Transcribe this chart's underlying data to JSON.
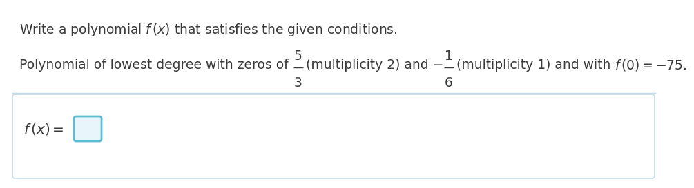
{
  "bg_color": "#ffffff",
  "text_color": "#3a3a3a",
  "box_color": "#5bbcd6",
  "box_fill": "#e8f6fb",
  "sep_color": "#c0dde8",
  "font_size": 13.5,
  "answer_font_size": 14.5,
  "title_line": "Write a polynomial $f\\,(x)$ that satisfies the given conditions.",
  "prob_part1": "Polynomial of lowest degree with zeros of ",
  "frac1_top": "5",
  "frac1_bot": "3",
  "prob_part2": "(multiplicity 2) and −",
  "frac2_top": "1",
  "frac2_bot": "6",
  "prob_part3": "(multiplicity 1) and with ",
  "prob_part4": "$f\\,(0) = -75$.",
  "answer_label": "$f\\,(x) =$"
}
